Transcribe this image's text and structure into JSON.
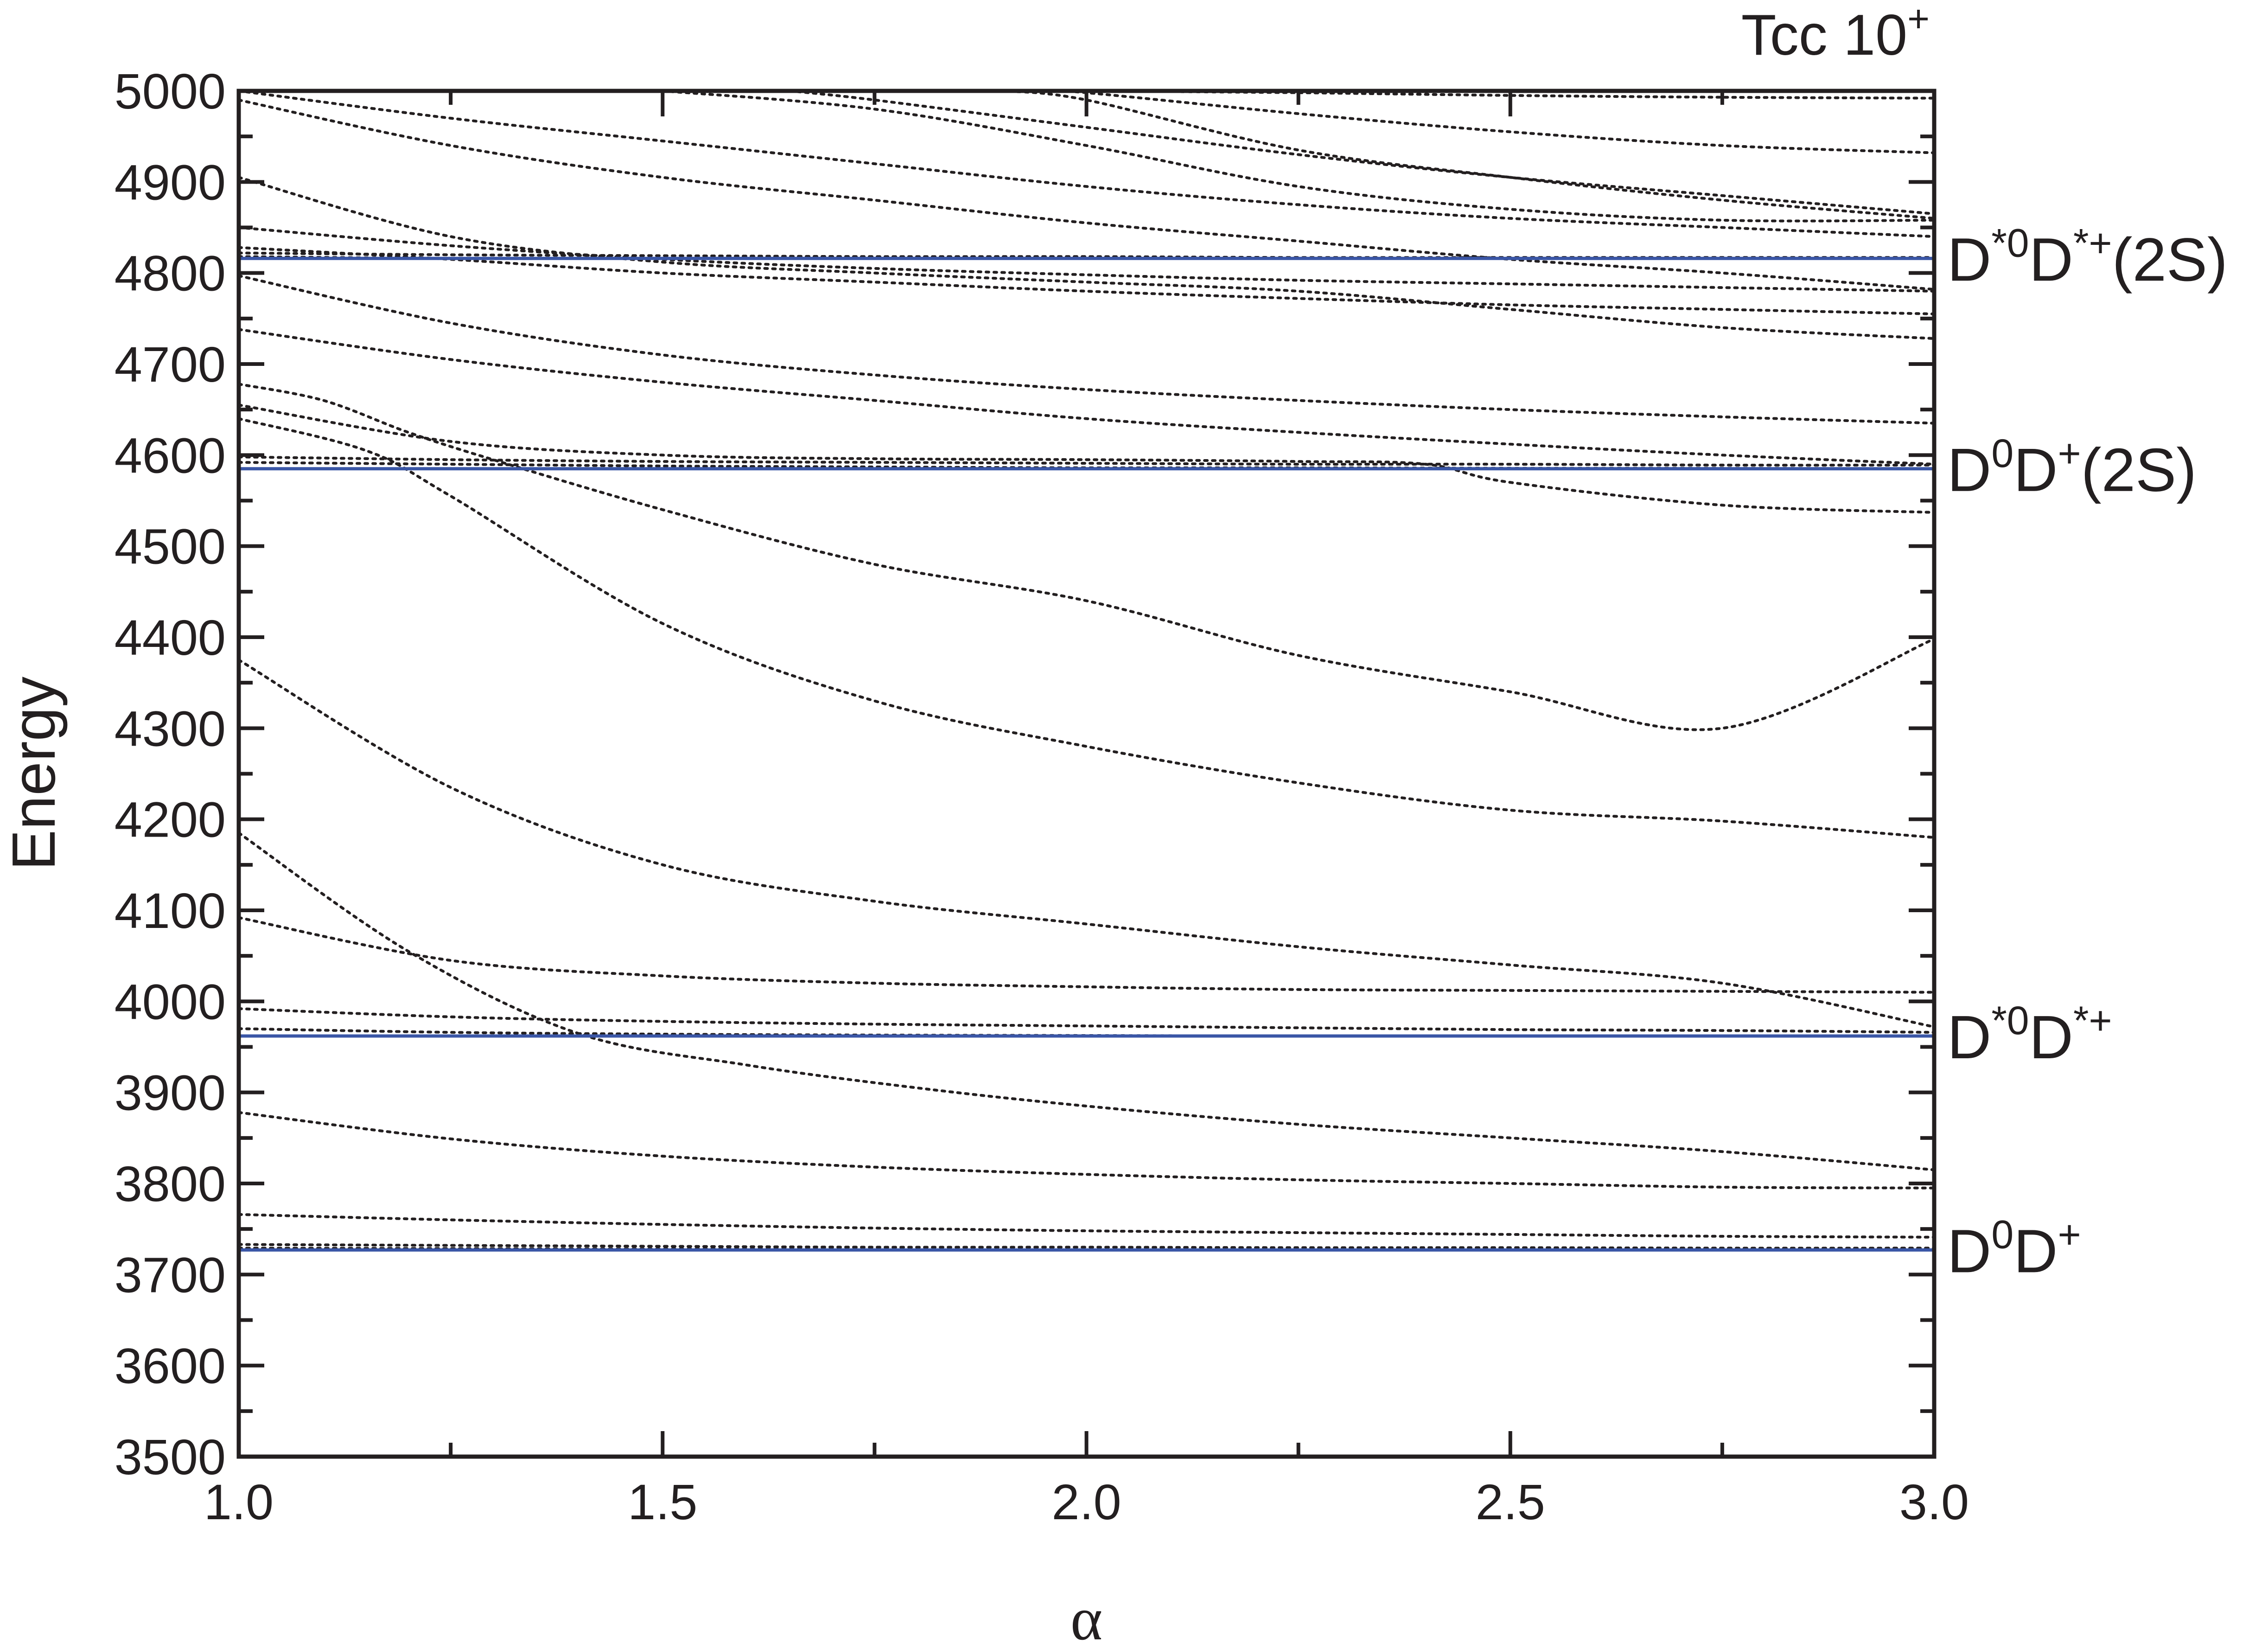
{
  "chart_data": {
    "type": "line",
    "title": "Tcc 10",
    "title_superscript": "+",
    "xlabel": "α",
    "ylabel": "Energy",
    "xlim": [
      1.0,
      3.0
    ],
    "ylim": [
      3500,
      5000
    ],
    "x_ticks": [
      "1.0",
      "1.5",
      "2.0",
      "2.5",
      "3.0"
    ],
    "y_ticks": [
      "3500",
      "3600",
      "3700",
      "3800",
      "3900",
      "4000",
      "4100",
      "4200",
      "4300",
      "4400",
      "4500",
      "4600",
      "4700",
      "4800",
      "4900",
      "5000"
    ],
    "grid": false,
    "thresholds": [
      {
        "base": "D",
        "sup1": "0",
        "mid": "D",
        "sup2": "+",
        "suffix": "",
        "y": 3727,
        "color": "#3a56a6"
      },
      {
        "base": "D",
        "sup1": "*0",
        "mid": "D",
        "sup2": "*+",
        "suffix": "",
        "y": 3962,
        "color": "#3a56a6"
      },
      {
        "base": "D",
        "sup1": "0",
        "mid": "D",
        "sup2": "+",
        "suffix": "(2S)",
        "y": 4585,
        "color": "#3a56a6"
      },
      {
        "base": "D",
        "sup1": "*0",
        "mid": "D",
        "sup2": "*+",
        "suffix": "(2S)",
        "y": 4816,
        "color": "#3a56a6"
      }
    ],
    "line_style": "dotted",
    "line_color": "#231f20",
    "series": [
      {
        "x": [
          1.0,
          1.25,
          1.5,
          1.75,
          2.0,
          2.25,
          2.5,
          2.75,
          3.0
        ],
        "y": [
          3729,
          3728.5,
          3728,
          3728,
          3727.5,
          3727.5,
          3727.5,
          3727.5,
          3727.5
        ]
      },
      {
        "x": [
          1.0,
          1.25,
          1.5,
          1.75,
          2.0,
          2.25,
          2.5,
          2.75,
          3.0
        ],
        "y": [
          3733,
          3732,
          3731,
          3730,
          3730,
          3729.5,
          3729.5,
          3729,
          3729
        ]
      },
      {
        "x": [
          1.0,
          1.25,
          1.5,
          1.75,
          2.0,
          2.25,
          2.5,
          2.75,
          3.0
        ],
        "y": [
          3766,
          3760,
          3755,
          3751,
          3748,
          3746,
          3744,
          3742,
          3741
        ]
      },
      {
        "x": [
          1.0,
          1.25,
          1.5,
          1.75,
          2.0,
          2.25,
          2.5,
          2.75,
          3.0
        ],
        "y": [
          3878,
          3849,
          3830,
          3818,
          3810,
          3804,
          3800,
          3796,
          3795
        ]
      },
      {
        "x": [
          1.0,
          1.2,
          1.4,
          1.6,
          1.8,
          2.0,
          2.25,
          2.5,
          2.75,
          3.0
        ],
        "y": [
          4185,
          4055,
          3965,
          3930,
          3905,
          3885,
          3865,
          3850,
          3835,
          3815
        ]
      },
      {
        "x": [
          1.0,
          1.25,
          1.5,
          1.75,
          2.0,
          2.25,
          2.5,
          2.75,
          3.0
        ],
        "y": [
          3970,
          3966,
          3964,
          3963,
          3962.5,
          3962,
          3962,
          3962,
          3962
        ]
      },
      {
        "x": [
          1.0,
          1.25,
          1.5,
          1.75,
          2.0,
          2.25,
          2.5,
          2.75,
          3.0
        ],
        "y": [
          3992,
          3983,
          3978,
          3975,
          3973,
          3971,
          3969,
          3968,
          3966
        ]
      },
      {
        "x": [
          1.0,
          1.25,
          1.5,
          1.75,
          2.0,
          2.25,
          2.5,
          2.75,
          3.0
        ],
        "y": [
          4092,
          4045,
          4028,
          4020,
          4016,
          4013,
          4012,
          4011,
          4010
        ]
      },
      {
        "x": [
          1.0,
          1.25,
          1.5,
          1.75,
          2.0,
          2.25,
          2.5,
          2.75,
          3.0
        ],
        "y": [
          4375,
          4235,
          4150,
          4110,
          4085,
          4060,
          4040,
          4020,
          3972
        ]
      },
      {
        "x": [
          1.0,
          1.15,
          1.25,
          1.5,
          1.75,
          2.0,
          2.25,
          2.5,
          2.75,
          3.0
        ],
        "y": [
          4640,
          4605,
          4555,
          4415,
          4330,
          4280,
          4240,
          4210,
          4198,
          4180
        ]
      },
      {
        "x": [
          1.0,
          1.25,
          1.5,
          1.75,
          2.0,
          2.25,
          2.5,
          2.75,
          3.0
        ],
        "y": [
          4592,
          4590,
          4588,
          4587,
          4586,
          4586,
          4585.5,
          4585.5,
          4585
        ]
      },
      {
        "x": [
          1.0,
          1.25,
          1.5,
          1.75,
          2.0,
          2.25,
          2.5,
          2.75,
          3.0
        ],
        "y": [
          4598,
          4595,
          4593,
          4592,
          4591,
          4590,
          4590,
          4589,
          4589
        ]
      },
      {
        "x": [
          1.0,
          1.1,
          1.2,
          1.3,
          1.5,
          1.75,
          2.0,
          2.25,
          2.5,
          2.75,
          3.0
        ],
        "y": [
          4678,
          4660,
          4625,
          4595,
          4540,
          4480,
          4440,
          4380,
          4340,
          4300,
          4398
        ]
      },
      {
        "x": [
          1.0,
          1.25,
          1.5,
          1.75,
          2.0,
          2.25,
          2.4,
          2.5,
          2.75,
          3.0
        ],
        "y": [
          4655,
          4615,
          4600,
          4596,
          4595,
          4593,
          4590,
          4570,
          4545,
          4537
        ]
      },
      {
        "x": [
          1.0,
          1.25,
          1.5,
          1.75,
          2.0,
          2.25,
          2.5,
          2.75,
          3.0
        ],
        "y": [
          4738,
          4705,
          4680,
          4660,
          4640,
          4625,
          4612,
          4600,
          4590
        ]
      },
      {
        "x": [
          1.0,
          1.25,
          1.5,
          1.75,
          2.0,
          2.25,
          2.5,
          2.75,
          3.0
        ],
        "y": [
          4797,
          4745,
          4710,
          4688,
          4672,
          4660,
          4650,
          4642,
          4635
        ]
      },
      {
        "x": [
          1.0,
          1.25,
          1.5,
          1.75,
          2.0,
          2.25,
          2.5,
          2.75,
          3.0
        ],
        "y": [
          4818,
          4816,
          4816,
          4816,
          4816,
          4816,
          4816,
          4816,
          4816
        ]
      },
      {
        "x": [
          1.0,
          1.25,
          1.5,
          1.75,
          2.0,
          2.25,
          2.5,
          2.75,
          3.0
        ],
        "y": [
          4822,
          4820,
          4819,
          4818,
          4818,
          4817,
          4817,
          4817,
          4817
        ]
      },
      {
        "x": [
          1.0,
          1.25,
          1.5,
          1.75,
          2.0,
          2.25,
          2.5,
          2.75,
          3.0
        ],
        "y": [
          4828,
          4815,
          4800,
          4790,
          4780,
          4772,
          4765,
          4760,
          4755
        ]
      },
      {
        "x": [
          1.0,
          1.25,
          1.5,
          1.75,
          2.0,
          2.25,
          2.5,
          2.75,
          3.0
        ],
        "y": [
          4850,
          4830,
          4815,
          4805,
          4798,
          4792,
          4788,
          4784,
          4780
        ]
      },
      {
        "x": [
          1.0,
          1.25,
          1.5,
          1.75,
          2.0,
          2.25,
          2.5,
          2.75,
          3.0
        ],
        "y": [
          4905,
          4840,
          4812,
          4800,
          4790,
          4780,
          4760,
          4740,
          4728
        ]
      },
      {
        "x": [
          1.0,
          1.25,
          1.5,
          1.75,
          2.0,
          2.25,
          2.5,
          2.75,
          3.0
        ],
        "y": [
          4990,
          4940,
          4905,
          4880,
          4855,
          4835,
          4815,
          4800,
          4782
        ]
      },
      {
        "x": [
          1.0,
          1.25,
          1.5,
          1.75,
          2.0,
          2.25,
          2.5,
          2.75,
          3.0
        ],
        "y": [
          5000,
          4970,
          4945,
          4920,
          4895,
          4875,
          4860,
          4850,
          4840
        ]
      },
      {
        "x": [
          1.5,
          1.75,
          2.0,
          2.25,
          2.5,
          2.75,
          3.0
        ],
        "y": [
          5000,
          4980,
          4940,
          4895,
          4870,
          4858,
          4858
        ]
      },
      {
        "x": [
          1.65,
          1.75,
          2.0,
          2.25,
          2.5,
          2.75,
          3.0
        ],
        "y": [
          5000,
          4990,
          4960,
          4930,
          4905,
          4885,
          4865
        ]
      },
      {
        "x": [
          1.9,
          2.0,
          2.25,
          2.5,
          2.75,
          3.0
        ],
        "y": [
          5000,
          4990,
          4935,
          4905,
          4880,
          4860
        ]
      },
      {
        "x": [
          1.95,
          2.0,
          2.25,
          2.5,
          2.75,
          3.0
        ],
        "y": [
          5000,
          4998,
          4975,
          4955,
          4940,
          4932
        ]
      },
      {
        "x": [
          2.0,
          2.25,
          2.5,
          2.75,
          3.0
        ],
        "y": [
          5000,
          4998,
          4995,
          4993,
          4992
        ]
      }
    ]
  }
}
